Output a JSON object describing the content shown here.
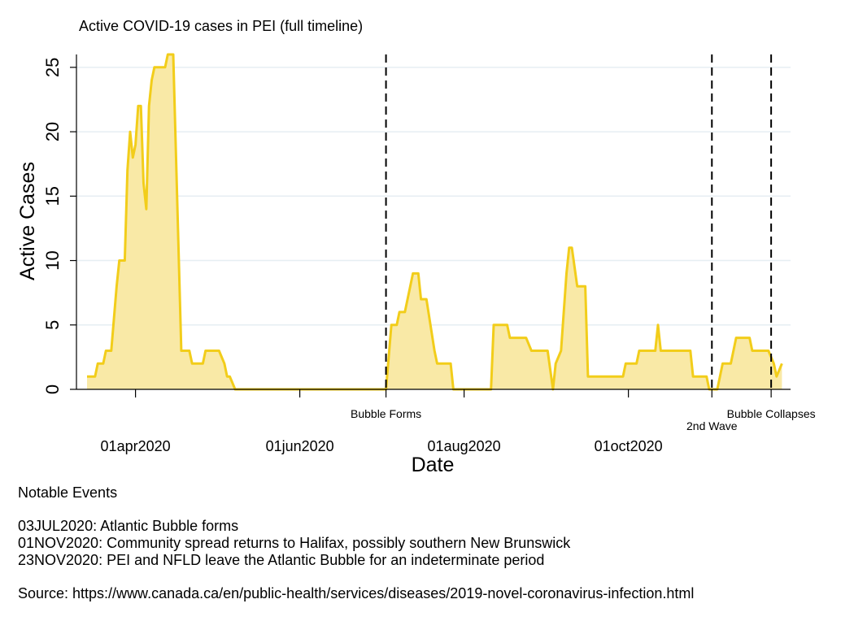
{
  "colors": {
    "line": "#f2cd1a",
    "fill": "#f9e9a6",
    "grid": "#e6eef3",
    "axis": "#000000",
    "event_line": "#000000"
  },
  "chart_data": {
    "type": "area",
    "title": "Active COVID-19 cases in PEI (full timeline)",
    "xlabel": "Date",
    "ylabel": "Active Cases",
    "ylim": [
      0,
      26
    ],
    "xlim": [
      "2020-03-14",
      "2020-11-29"
    ],
    "y_ticks": [
      0,
      5,
      10,
      15,
      20,
      25
    ],
    "x_ticks": [
      {
        "date": "2020-04-01",
        "label": "01apr2020"
      },
      {
        "date": "2020-06-01",
        "label": "01jun2020"
      },
      {
        "date": "2020-08-01",
        "label": "01aug2020"
      },
      {
        "date": "2020-10-01",
        "label": "01oct2020"
      }
    ],
    "grid": true,
    "events": [
      {
        "date": "2020-07-03",
        "label": "Bubble Forms"
      },
      {
        "date": "2020-11-01",
        "label": "2nd Wave"
      },
      {
        "date": "2020-11-23",
        "label": "Bubble Collapses"
      }
    ],
    "series": [
      {
        "points": [
          [
            "2020-03-14",
            1
          ],
          [
            "2020-03-17",
            1
          ],
          [
            "2020-03-18",
            2
          ],
          [
            "2020-03-20",
            2
          ],
          [
            "2020-03-21",
            3
          ],
          [
            "2020-03-23",
            3
          ],
          [
            "2020-03-25",
            8
          ],
          [
            "2020-03-26",
            10
          ],
          [
            "2020-03-28",
            10
          ],
          [
            "2020-03-29",
            17
          ],
          [
            "2020-03-30",
            20
          ],
          [
            "2020-03-31",
            18
          ],
          [
            "2020-04-01",
            19
          ],
          [
            "2020-04-02",
            22
          ],
          [
            "2020-04-03",
            22
          ],
          [
            "2020-04-04",
            16
          ],
          [
            "2020-04-05",
            14
          ],
          [
            "2020-04-06",
            22
          ],
          [
            "2020-04-07",
            24
          ],
          [
            "2020-04-08",
            25
          ],
          [
            "2020-04-12",
            25
          ],
          [
            "2020-04-13",
            26
          ],
          [
            "2020-04-15",
            26
          ],
          [
            "2020-04-18",
            3
          ],
          [
            "2020-04-21",
            3
          ],
          [
            "2020-04-22",
            2
          ],
          [
            "2020-04-26",
            2
          ],
          [
            "2020-04-27",
            3
          ],
          [
            "2020-05-02",
            3
          ],
          [
            "2020-05-04",
            2
          ],
          [
            "2020-05-05",
            1
          ],
          [
            "2020-05-06",
            1
          ],
          [
            "2020-05-08",
            0
          ],
          [
            "2020-07-03",
            0
          ],
          [
            "2020-07-05",
            5
          ],
          [
            "2020-07-07",
            5
          ],
          [
            "2020-07-08",
            6
          ],
          [
            "2020-07-10",
            6
          ],
          [
            "2020-07-13",
            9
          ],
          [
            "2020-07-15",
            9
          ],
          [
            "2020-07-16",
            7
          ],
          [
            "2020-07-18",
            7
          ],
          [
            "2020-07-21",
            3
          ],
          [
            "2020-07-22",
            2
          ],
          [
            "2020-07-27",
            2
          ],
          [
            "2020-07-28",
            0
          ],
          [
            "2020-08-11",
            0
          ],
          [
            "2020-08-12",
            5
          ],
          [
            "2020-08-17",
            5
          ],
          [
            "2020-08-18",
            4
          ],
          [
            "2020-08-24",
            4
          ],
          [
            "2020-08-26",
            3
          ],
          [
            "2020-09-01",
            3
          ],
          [
            "2020-09-03",
            0
          ],
          [
            "2020-09-04",
            2
          ],
          [
            "2020-09-06",
            3
          ],
          [
            "2020-09-08",
            9
          ],
          [
            "2020-09-09",
            11
          ],
          [
            "2020-09-10",
            11
          ],
          [
            "2020-09-12",
            8
          ],
          [
            "2020-09-15",
            8
          ],
          [
            "2020-09-16",
            1
          ],
          [
            "2020-09-29",
            1
          ],
          [
            "2020-09-30",
            2
          ],
          [
            "2020-10-04",
            2
          ],
          [
            "2020-10-05",
            3
          ],
          [
            "2020-10-11",
            3
          ],
          [
            "2020-10-12",
            5
          ],
          [
            "2020-10-13",
            3
          ],
          [
            "2020-10-24",
            3
          ],
          [
            "2020-10-25",
            1
          ],
          [
            "2020-10-30",
            1
          ],
          [
            "2020-10-31",
            0
          ],
          [
            "2020-11-03",
            0
          ],
          [
            "2020-11-05",
            2
          ],
          [
            "2020-11-08",
            2
          ],
          [
            "2020-11-10",
            4
          ],
          [
            "2020-11-15",
            4
          ],
          [
            "2020-11-16",
            3
          ],
          [
            "2020-11-22",
            3
          ],
          [
            "2020-11-24",
            2
          ],
          [
            "2020-11-25",
            1
          ],
          [
            "2020-11-27",
            2
          ]
        ]
      }
    ]
  },
  "notes": {
    "heading": "Notable Events",
    "items": [
      "03JUL2020: Atlantic Bubble forms",
      "01NOV2020: Community spread returns to Halifax, possibly southern New Brunswick",
      "23NOV2020: PEI and NFLD leave the Atlantic Bubble for an indeterminate period"
    ],
    "source": "Source: https://www.canada.ca/en/public-health/services/diseases/2019-novel-coronavirus-infection.html"
  }
}
